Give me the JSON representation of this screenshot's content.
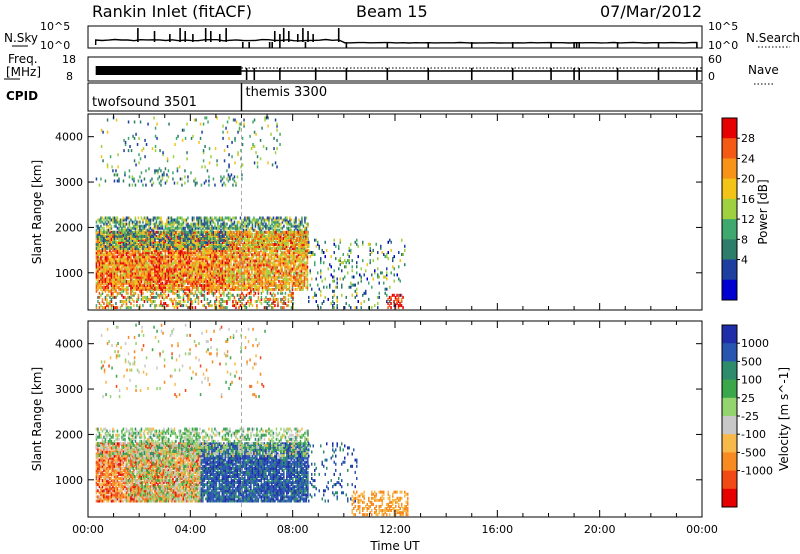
{
  "header": {
    "station": "Rankin Inlet (fitACF)",
    "beam": "Beam 15",
    "date": "07/Mar/2012"
  },
  "summary_panels": {
    "nsky_label": "N.Sky",
    "nsky_ticks": [
      "10^5",
      "10^0"
    ],
    "nsearch_label": "N.Search",
    "freq_label_1": "Freq.",
    "freq_label_2": "[MHz]",
    "freq_ticks": [
      "18",
      "8"
    ],
    "nave_label": "Nave",
    "nave_ticks": [
      "60",
      "0"
    ],
    "cpid_label": "CPID",
    "cpid_modes": [
      {
        "name": "twofsound 3501",
        "start_hour": 0,
        "end_hour": 6.0
      },
      {
        "name": "themis 3300",
        "start_hour": 6.0,
        "end_hour": 24
      }
    ],
    "nsky_spike_hours": [
      1.95,
      2.6,
      3.2,
      3.6,
      3.8,
      4.1,
      4.6,
      4.8,
      5.15,
      5.4,
      7.3,
      7.5,
      7.65,
      7.85,
      8.2,
      8.4,
      8.6,
      8.8,
      9.8
    ],
    "nsearch_tick_hours": [
      6.05,
      6.3,
      7.1,
      7.2,
      7.5,
      8.5,
      10.1,
      11.7,
      13.3,
      15.0,
      16.6,
      18.1,
      19.0,
      19.1,
      19.2,
      20.7,
      22.3,
      23.8
    ],
    "freq_tick_hours": [
      6.2,
      6.5,
      7.5,
      8.9,
      10.1,
      11.7,
      13.3,
      15.0,
      16.6,
      18.1,
      19.0,
      19.2,
      20.7,
      22.3,
      23.8
    ]
  },
  "chart_data": [
    {
      "type": "heatmap",
      "parameter": "power",
      "xlabel": "",
      "ylabel": "Slant Range [km]",
      "x_ticks": [
        "00:00",
        "04:00",
        "08:00",
        "12:00",
        "16:00",
        "20:00",
        "00:00"
      ],
      "xlim": [
        0,
        24
      ],
      "ylim": [
        180,
        4500
      ],
      "y_ticks": [
        1000,
        2000,
        3000,
        4000
      ],
      "colorbar_label": "Power [dB]",
      "colorbar_ticks": [
        "28",
        "24",
        "20",
        "16",
        "12",
        "8",
        "4"
      ],
      "colorbar_range": [
        0,
        32
      ],
      "colors": [
        "#0000d0",
        "#1e3fa0",
        "#2e7c6a",
        "#3fa86e",
        "#9fd040",
        "#f2c418",
        "#f79318",
        "#f55a14",
        "#e60000"
      ],
      "blocks": [
        {
          "h0": 0.3,
          "h1": 5.5,
          "r0": 600,
          "r1": 1900,
          "vmin": 16,
          "vmax": 32,
          "density": 0.9
        },
        {
          "h0": 0.3,
          "h1": 8.6,
          "r0": 1500,
          "r1": 2200,
          "vmin": 4,
          "vmax": 20,
          "density": 0.6
        },
        {
          "h0": 5.5,
          "h1": 8.6,
          "r0": 600,
          "r1": 1900,
          "vmin": 14,
          "vmax": 30,
          "density": 0.8
        },
        {
          "h0": 0.3,
          "h1": 8.0,
          "r0": 200,
          "r1": 600,
          "vmin": 8,
          "vmax": 32,
          "density": 0.4
        },
        {
          "h0": 8.6,
          "h1": 12.4,
          "r0": 200,
          "r1": 1700,
          "vmin": 2,
          "vmax": 20,
          "density": 0.12
        },
        {
          "h0": 0.3,
          "h1": 6.0,
          "r0": 2900,
          "r1": 3300,
          "vmin": 4,
          "vmax": 16,
          "density": 0.12
        },
        {
          "h0": 0.5,
          "h1": 7.5,
          "r0": 3300,
          "r1": 4400,
          "vmin": 4,
          "vmax": 20,
          "density": 0.05
        },
        {
          "h0": 11.7,
          "h1": 12.3,
          "r0": 200,
          "r1": 500,
          "vmin": 24,
          "vmax": 32,
          "density": 0.5
        }
      ]
    },
    {
      "type": "heatmap",
      "parameter": "velocity",
      "xlabel": "Time UT",
      "ylabel": "Slant Range [km]",
      "x_ticks": [
        "00:00",
        "04:00",
        "08:00",
        "12:00",
        "16:00",
        "20:00",
        "00:00"
      ],
      "xlim": [
        0,
        24
      ],
      "ylim": [
        180,
        4500
      ],
      "y_ticks": [
        1000,
        2000,
        3000,
        4000
      ],
      "colorbar_label": "Velocity [m s^-1]",
      "colorbar_ticks": [
        "1000",
        "500",
        "100",
        "25",
        "-25",
        "-100",
        "-500",
        "-1000"
      ],
      "colors": [
        "#e60000",
        "#f24a14",
        "#f78a20",
        "#f7ba4a",
        "#c8c8c8",
        "#94d46e",
        "#3aa84a",
        "#2e8c6c",
        "#2855b0",
        "#1e2ea8"
      ],
      "blocks": [
        {
          "h0": 0.3,
          "h1": 4.4,
          "r0": 500,
          "r1": 1800,
          "vmin": 0,
          "vmax": 4,
          "density": 0.85
        },
        {
          "h0": 1.5,
          "h1": 4.4,
          "r0": 500,
          "r1": 2000,
          "vmin": 4,
          "vmax": 6,
          "density": 0.3
        },
        {
          "h0": 4.4,
          "h1": 8.6,
          "r0": 500,
          "r1": 1800,
          "vmin": 7,
          "vmax": 9,
          "density": 0.85
        },
        {
          "h0": 0.3,
          "h1": 8.6,
          "r0": 1500,
          "r1": 2100,
          "vmin": 3,
          "vmax": 7,
          "density": 0.4
        },
        {
          "h0": 8.6,
          "h1": 10.5,
          "r0": 500,
          "r1": 1800,
          "vmin": 7,
          "vmax": 9,
          "density": 0.12
        },
        {
          "h0": 10.3,
          "h1": 12.5,
          "r0": 200,
          "r1": 700,
          "vmin": 2,
          "vmax": 3,
          "density": 0.45
        },
        {
          "h0": 0.5,
          "h1": 7.0,
          "r0": 2800,
          "r1": 4400,
          "vmin": 1,
          "vmax": 6,
          "density": 0.05
        }
      ]
    }
  ]
}
